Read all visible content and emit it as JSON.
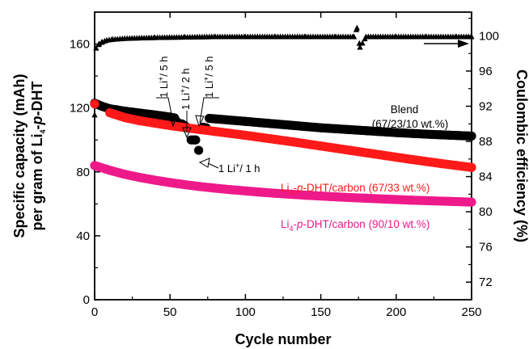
{
  "chart_data": {
    "type": "scatter",
    "xlabel": "Cycle number",
    "ylabel_left": [
      "Specific capacity (mAh)",
      "per gram of Li",
      "4",
      "-",
      "p",
      "-DHT"
    ],
    "ylabel_right": "Coulombic efficiency (%)",
    "xlim": [
      0,
      250
    ],
    "ylim_left": [
      0,
      180
    ],
    "ylim_right": [
      70,
      102.7
    ],
    "x_ticks": [
      "0",
      "50",
      "100",
      "150",
      "200",
      "250"
    ],
    "y_ticks_left": [
      "0",
      "40",
      "80",
      "120",
      "160"
    ],
    "y_ticks_right": [
      "72",
      "76",
      "80",
      "84",
      "88",
      "92",
      "96",
      "100"
    ],
    "series": [
      {
        "color": "#000000",
        "marker": "circle",
        "axis": "left",
        "points": [
          [
            0,
            123
          ],
          [
            5,
            121
          ],
          [
            10,
            119.5
          ],
          [
            15,
            118.8
          ],
          [
            20,
            118
          ],
          [
            25,
            117.4
          ],
          [
            30,
            116.8
          ],
          [
            35,
            116.2
          ],
          [
            40,
            115.6
          ],
          [
            45,
            115
          ],
          [
            50,
            114.3
          ],
          [
            53,
            113.8
          ],
          [
            55,
            110.5
          ],
          [
            58,
            110
          ],
          [
            61,
            108
          ],
          [
            64,
            100
          ],
          [
            67,
            100
          ],
          [
            69,
            93.5
          ],
          [
            72,
            108
          ],
          [
            74,
            107.6
          ],
          [
            76,
            113.5
          ],
          [
            80,
            113.2
          ],
          [
            90,
            112.4
          ],
          [
            100,
            111.6
          ],
          [
            110,
            110.8
          ],
          [
            120,
            110
          ],
          [
            130,
            109.2
          ],
          [
            140,
            108.4
          ],
          [
            150,
            107.6
          ],
          [
            160,
            107
          ],
          [
            170,
            106.4
          ],
          [
            180,
            105.8
          ],
          [
            190,
            105.2
          ],
          [
            200,
            104.6
          ],
          [
            210,
            104.1
          ],
          [
            220,
            103.6
          ],
          [
            230,
            103.2
          ],
          [
            240,
            102.8
          ],
          [
            250,
            102.4
          ]
        ]
      },
      {
        "color": "#ff1a1a",
        "marker": "circle",
        "axis": "left",
        "points": [
          [
            0,
            122.5
          ],
          [
            10,
            117
          ],
          [
            20,
            114
          ],
          [
            30,
            112
          ],
          [
            40,
            110.5
          ],
          [
            50,
            109
          ],
          [
            60,
            107.7
          ],
          [
            70,
            106.5
          ],
          [
            80,
            105.3
          ],
          [
            90,
            104.1
          ],
          [
            100,
            102.9
          ],
          [
            110,
            101.6
          ],
          [
            120,
            100.3
          ],
          [
            130,
            99
          ],
          [
            140,
            97.6
          ],
          [
            150,
            96.2
          ],
          [
            160,
            94.8
          ],
          [
            170,
            93.4
          ],
          [
            180,
            92
          ],
          [
            190,
            90.6
          ],
          [
            200,
            89.2
          ],
          [
            210,
            87.8
          ],
          [
            220,
            86.5
          ],
          [
            230,
            85.2
          ],
          [
            240,
            84
          ],
          [
            250,
            82.8
          ]
        ]
      },
      {
        "color": "#ee1a8a",
        "marker": "circle",
        "axis": "left",
        "points": [
          [
            0,
            84
          ],
          [
            10,
            81
          ],
          [
            20,
            78.5
          ],
          [
            30,
            76.5
          ],
          [
            40,
            74.8
          ],
          [
            50,
            73.3
          ],
          [
            60,
            72
          ],
          [
            70,
            70.8
          ],
          [
            80,
            69.8
          ],
          [
            90,
            68.9
          ],
          [
            100,
            68.1
          ],
          [
            110,
            67.3
          ],
          [
            120,
            66.6
          ],
          [
            130,
            66
          ],
          [
            140,
            65.4
          ],
          [
            150,
            64.9
          ],
          [
            160,
            64.4
          ],
          [
            170,
            63.9
          ],
          [
            180,
            63.5
          ],
          [
            190,
            63.1
          ],
          [
            200,
            62.7
          ],
          [
            210,
            62.3
          ],
          [
            220,
            62
          ],
          [
            230,
            61.7
          ],
          [
            240,
            61.4
          ],
          [
            250,
            61.1
          ]
        ]
      },
      {
        "color": "#000000",
        "marker": "triangle",
        "axis": "right",
        "points": [
          [
            0,
            91
          ],
          [
            1,
            98.6
          ],
          [
            3,
            99.1
          ],
          [
            5,
            99.3
          ],
          [
            8,
            99.5
          ],
          [
            12,
            99.6
          ],
          [
            20,
            99.7
          ],
          [
            40,
            99.8
          ],
          [
            60,
            99.85
          ],
          [
            80,
            99.9
          ],
          [
            100,
            99.9
          ],
          [
            120,
            99.9
          ],
          [
            140,
            99.9
          ],
          [
            160,
            99.9
          ],
          [
            172,
            99.9
          ],
          [
            174,
            100.9
          ],
          [
            176,
            98.7
          ],
          [
            180,
            99.9
          ],
          [
            200,
            99.9
          ],
          [
            220,
            99.9
          ],
          [
            240,
            99.9
          ],
          [
            250,
            99.9
          ]
        ]
      }
    ],
    "annotations": {
      "blend": [
        "Blend",
        "(67/23/10 wt.%)"
      ],
      "red_label": [
        "Li",
        "4",
        "-",
        "p",
        "-DHT/carbon (67/33 wt.%)"
      ],
      "pink_label": [
        "Li",
        "4",
        "-",
        "p",
        "-DHT/carbon (90/10 wt.%)"
      ],
      "rate_5h_a": [
        "1 Li",
        "+",
        "/ 5 h"
      ],
      "rate_2h": [
        "1 Li",
        "+",
        "/ 2 h"
      ],
      "rate_5h_b": [
        "1 Li",
        "+",
        "/ 5 h"
      ],
      "rate_1h": [
        "1 Li",
        "+",
        "/ 1 h"
      ]
    }
  }
}
